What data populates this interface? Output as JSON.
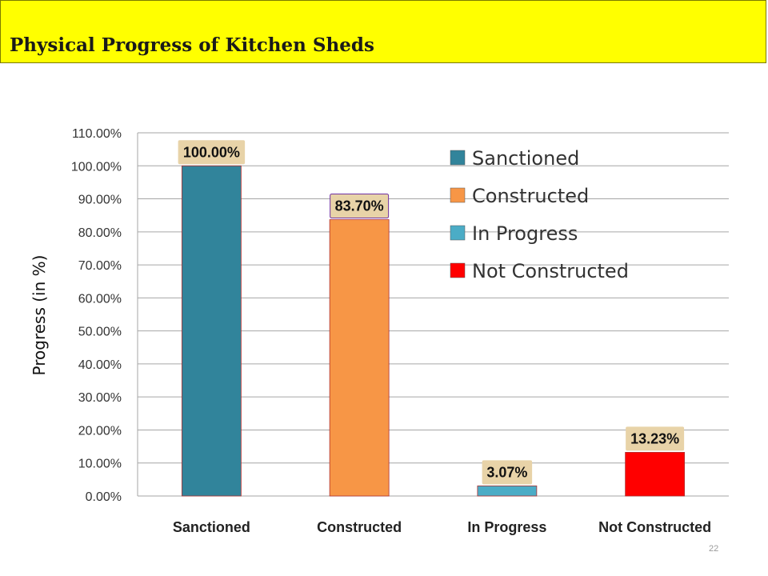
{
  "slide": {
    "title": "Physical Progress of  Kitchen Sheds",
    "page_number": "22"
  },
  "chart_data": {
    "type": "bar",
    "categories": [
      "Sanctioned",
      "Constructed",
      "In Progress",
      "Not Constructed"
    ],
    "values": [
      100.0,
      83.7,
      3.07,
      13.23
    ],
    "data_labels": [
      "100.00%",
      "83.70%",
      "3.07%",
      "13.23%"
    ],
    "colors": [
      "#31849b",
      "#f79646",
      "#4bacc6",
      "#ff0000"
    ],
    "title": "",
    "xlabel": "",
    "ylabel": "Progress (in %)",
    "ylim": [
      0,
      110
    ],
    "yticks": [
      0,
      10,
      20,
      30,
      40,
      50,
      60,
      70,
      80,
      90,
      100,
      110
    ],
    "ytick_labels": [
      "0.00%",
      "10.00%",
      "20.00%",
      "30.00%",
      "40.00%",
      "50.00%",
      "60.00%",
      "70.00%",
      "80.00%",
      "90.00%",
      "100.00%",
      "110.00%"
    ],
    "grid": true,
    "legend": {
      "position": "top-right",
      "entries": [
        {
          "label": "Sanctioned",
          "color": "#31849b"
        },
        {
          "label": "Constructed",
          "color": "#f79646"
        },
        {
          "label": "In Progress",
          "color": "#4bacc6"
        },
        {
          "label": "Not Constructed",
          "color": "#ff0000"
        }
      ]
    }
  }
}
